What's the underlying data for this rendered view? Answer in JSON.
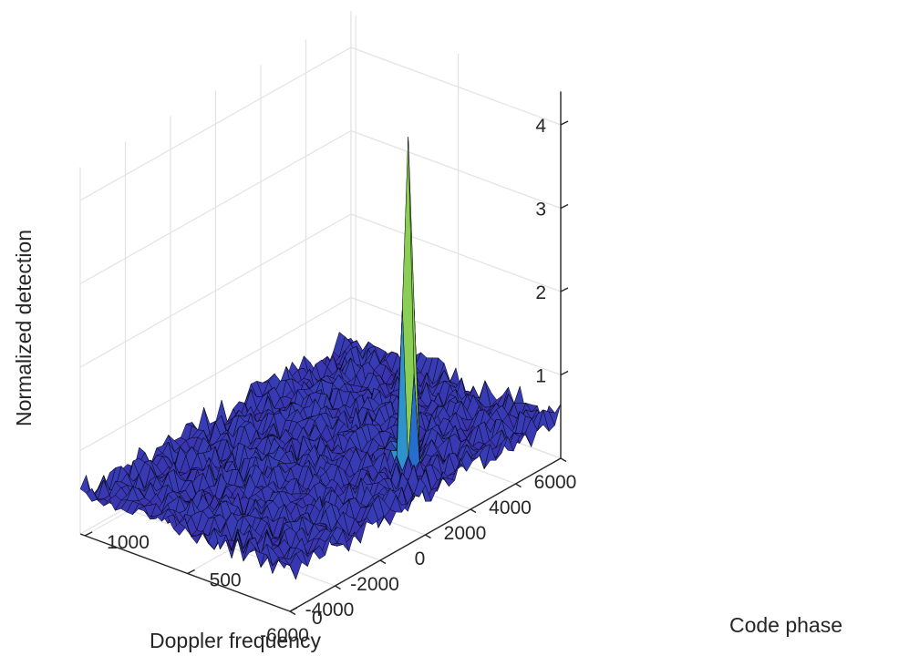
{
  "chart_data": {
    "type": "surface",
    "title": "",
    "xlabel": "Doppler frequency",
    "ylabel": "Code phase",
    "zlabel": "Normalized detection",
    "x_ticks": [
      "-6000",
      "-4000",
      "-2000",
      "0",
      "2000",
      "4000",
      "6000"
    ],
    "y_ticks": [
      "0",
      "500",
      "1000"
    ],
    "z_ticks": [
      "1",
      "2",
      "3",
      "4"
    ],
    "xlim": [
      -6000,
      6000
    ],
    "ylim": [
      0,
      1023
    ],
    "zlim": [
      0.3,
      4.4
    ],
    "grid": true,
    "colormap": "parula",
    "noise_floor": {
      "mean": 0.5,
      "amplitude": 0.2
    },
    "peak": {
      "doppler": 1500,
      "code_phase": 250,
      "value": 4.3
    },
    "colors": {
      "surface_low": "#3e26a8",
      "surface_mid": "#1e88e0",
      "surface_high": "#8fd14f",
      "edge": "#000000",
      "grid": "#e3e3e3",
      "axis": "#262626"
    }
  }
}
